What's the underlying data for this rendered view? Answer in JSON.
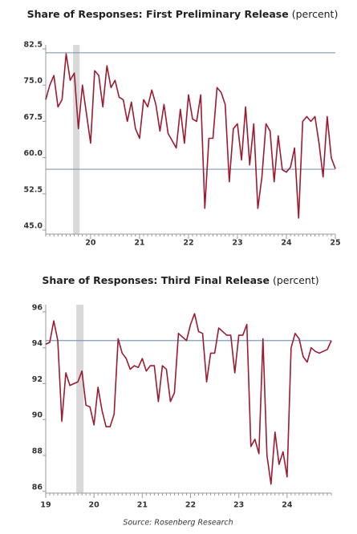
{
  "chart_data": [
    {
      "type": "line",
      "title": "Share of Responses: First Preliminary Release",
      "unit": "(percent)",
      "categories": [
        null,
        null,
        null,
        null,
        null,
        null,
        null,
        null,
        null,
        null,
        null,
        "20",
        null,
        null,
        null,
        null,
        null,
        null,
        null,
        null,
        null,
        null,
        null,
        "21",
        null,
        null,
        null,
        null,
        null,
        null,
        null,
        null,
        null,
        null,
        null,
        "22",
        null,
        null,
        null,
        null,
        null,
        null,
        null,
        null,
        null,
        null,
        null,
        "23",
        null,
        null,
        null,
        null,
        null,
        null,
        null,
        null,
        null,
        null,
        null,
        "24",
        null,
        null,
        null,
        null,
        null,
        null,
        null,
        null,
        null,
        null,
        null,
        "25"
      ],
      "values": [
        72,
        75,
        77,
        70.5,
        72,
        81.5,
        76,
        77.5,
        66,
        75,
        69,
        63,
        78,
        77,
        70.5,
        79,
        74.5,
        76,
        72.5,
        72,
        67.5,
        71.5,
        66,
        64,
        72,
        70.5,
        74,
        71,
        65.5,
        71,
        65,
        63.5,
        62,
        70,
        63,
        73,
        68,
        67.5,
        73,
        49.5,
        64,
        64,
        74.5,
        73.5,
        71,
        55,
        66,
        67,
        59.5,
        70.5,
        58.5,
        67,
        49.5,
        56,
        67,
        65.5,
        55,
        64.5,
        57.5,
        57,
        58,
        62,
        47.5,
        67.5,
        68.5,
        67.5,
        68.5,
        63,
        56,
        68.5,
        60,
        57.7
      ],
      "color": "#9b1b30",
      "ylim": [
        45,
        82.5
      ],
      "yticks": [
        {
          "value": 45,
          "label": "45.0"
        },
        52.5,
        {
          "value": 60,
          "label": "60.0"
        },
        67.5,
        {
          "value": 75,
          "label": "75.0"
        },
        82.5
      ],
      "reference_lines": [
        81.7,
        57.6
      ],
      "reference_color": "#7f9bb8",
      "shade": [
        6.7,
        8.3
      ],
      "shade_color": "#d9d9d9"
    },
    {
      "type": "line",
      "title": "Share of Responses: Third Final Release",
      "unit": "(percent)",
      "categories": [
        "19",
        null,
        null,
        null,
        null,
        null,
        null,
        null,
        null,
        null,
        null,
        null,
        "20",
        null,
        null,
        null,
        null,
        null,
        null,
        null,
        null,
        null,
        null,
        null,
        "21",
        null,
        null,
        null,
        null,
        null,
        null,
        null,
        null,
        null,
        null,
        null,
        "22",
        null,
        null,
        null,
        null,
        null,
        null,
        null,
        null,
        null,
        null,
        null,
        "23",
        null,
        null,
        null,
        null,
        null,
        null,
        null,
        null,
        null,
        null,
        null,
        "24",
        null,
        null,
        null,
        null,
        null,
        null,
        null,
        null,
        null,
        null,
        null
      ],
      "values": [
        94.2,
        94.3,
        95.5,
        94.4,
        89.9,
        92.6,
        91.9,
        92.0,
        92.1,
        92.7,
        90.8,
        90.7,
        89.7,
        91.8,
        90.5,
        89.6,
        89.6,
        90.3,
        94.5,
        93.7,
        93.4,
        92.8,
        93.0,
        92.9,
        93.4,
        92.7,
        93.0,
        93.0,
        91.0,
        93.0,
        92.8,
        91.0,
        91.5,
        94.8,
        94.6,
        94.4,
        95.3,
        95.9,
        94.9,
        94.8,
        92.1,
        93.7,
        93.7,
        95.1,
        94.9,
        94.7,
        94.7,
        92.6,
        94.7,
        94.7,
        95.3,
        88.5,
        88.9,
        88.1,
        94.5,
        88.0,
        86.4,
        89.3,
        87.5,
        88.2,
        86.8,
        94.0,
        94.8,
        94.5,
        93.5,
        93.2,
        94.0,
        93.8,
        93.7,
        93.8,
        93.9,
        94.4
      ],
      "color": "#9b1b30",
      "ylim": [
        85.9,
        96.4
      ],
      "yticks": [
        86,
        88,
        90,
        92,
        94,
        96
      ],
      "reference_lines": [
        94.4
      ],
      "reference_color": "#7f9bb8",
      "shade": [
        7.6,
        9.4
      ],
      "shade_color": "#d9d9d9"
    }
  ],
  "source": "Source: Rosenberg Research"
}
